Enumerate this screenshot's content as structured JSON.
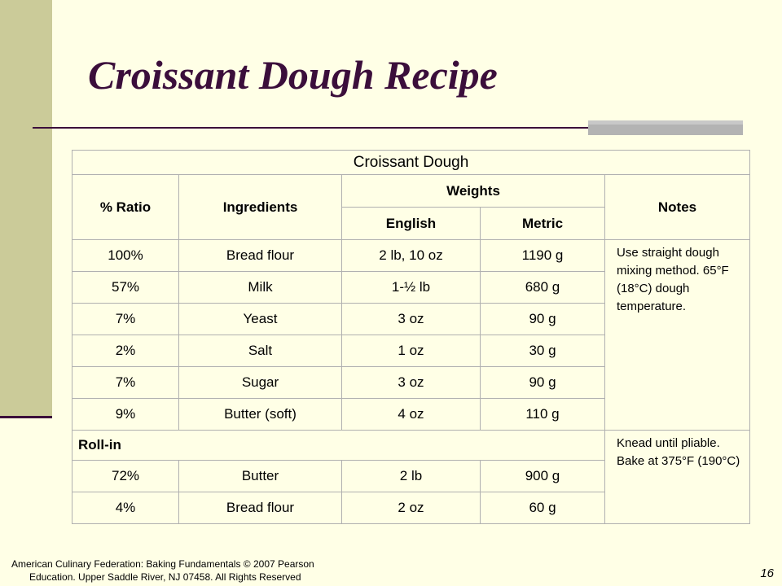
{
  "slide": {
    "title": "Croissant Dough Recipe",
    "page_number": "16",
    "footer": {
      "line1": "American Culinary Federation: Baking Fundamentals © 2007 Pearson",
      "line2": "Education. Upper Saddle River, NJ 07458. All Rights Reserved"
    },
    "colors": {
      "background": "#ffffe6",
      "left_band": "#cbcb99",
      "title": "#3b0e3b"
    }
  },
  "table": {
    "title": "Croissant Dough",
    "headers": {
      "ratio": "% Ratio",
      "ingredients": "Ingredients",
      "weights": "Weights",
      "english": "English",
      "metric": "Metric",
      "notes": "Notes"
    },
    "dough_rows": [
      {
        "ratio": "100%",
        "ingredient": "Bread flour",
        "english": "2 lb, 10 oz",
        "metric": "1190 g"
      },
      {
        "ratio": "57%",
        "ingredient": "Milk",
        "english": "1-½ lb",
        "metric": "680 g"
      },
      {
        "ratio": "7%",
        "ingredient": "Yeast",
        "english": "3 oz",
        "metric": "90 g"
      },
      {
        "ratio": "2%",
        "ingredient": "Salt",
        "english": "1 oz",
        "metric": "30 g"
      },
      {
        "ratio": "7%",
        "ingredient": "Sugar",
        "english": "3 oz",
        "metric": "90 g"
      },
      {
        "ratio": "9%",
        "ingredient": "Butter (soft)",
        "english": "4 oz",
        "metric": "110 g"
      }
    ],
    "dough_notes": "Use straight dough mixing method. 65°F (18°C) dough temperature.",
    "rollin_label": "Roll-in",
    "rollin_rows": [
      {
        "ratio": "72%",
        "ingredient": "Butter",
        "english": "2 lb",
        "metric": "900 g"
      },
      {
        "ratio": "4%",
        "ingredient": "Bread flour",
        "english": "2 oz",
        "metric": "60 g"
      }
    ],
    "rollin_notes": "Knead until pliable. Bake at 375°F (190°C)"
  }
}
